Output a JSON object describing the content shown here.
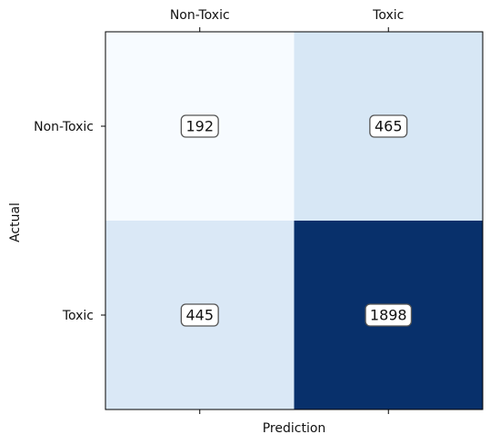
{
  "chart_data": {
    "type": "heatmap",
    "x_categories": [
      "Non-Toxic",
      "Toxic"
    ],
    "y_categories": [
      "Non-Toxic",
      "Toxic"
    ],
    "values": [
      [
        192,
        465
      ],
      [
        445,
        1898
      ]
    ],
    "xlabel": "Prediction",
    "ylabel": "Actual",
    "x_tick_position": "top",
    "colormap": "Blues",
    "colormap_stops": [
      "#f7fbff",
      "#deebf7",
      "#c6dbef",
      "#9ecae1",
      "#6baed6",
      "#4292c6",
      "#2171b5",
      "#08519c",
      "#08306b"
    ],
    "value_label_box": true,
    "grid": false
  }
}
